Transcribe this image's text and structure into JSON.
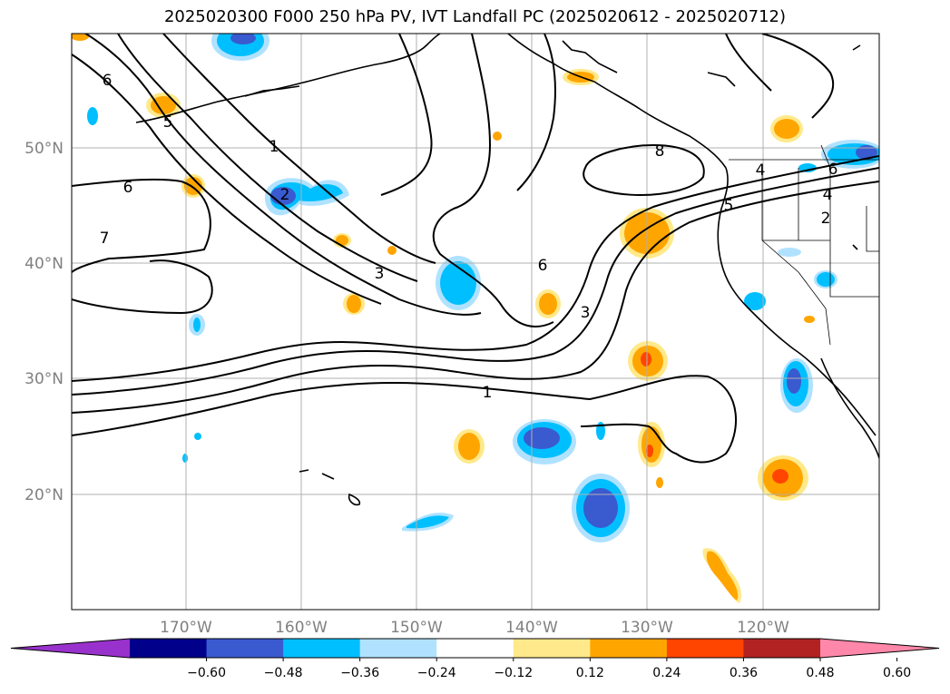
{
  "title": "2025020300 F000 250 hPa PV, IVT Landfall PC (2025020612 - 2025020712)",
  "lon_ticks": [
    "170°W",
    "160°W",
    "150°W",
    "140°W",
    "130°W",
    "120°W"
  ],
  "lat_ticks": [
    "50°N",
    "40°N",
    "30°N",
    "20°N"
  ],
  "contour_labels": [
    "6",
    "5",
    "1",
    "6",
    "7",
    "2",
    "3",
    "6",
    "3",
    "1",
    "8",
    "4",
    "5",
    "4",
    "2",
    "6"
  ],
  "colorbar": {
    "ticks": [
      "−0.60",
      "−0.48",
      "−0.36",
      "−0.24",
      "−0.12",
      "0.12",
      "0.24",
      "0.36",
      "0.48",
      "0.60"
    ],
    "colors": [
      "#9932cc",
      "#00008b",
      "#3a5ad0",
      "#00bfff",
      "#b0e2ff",
      "#ffffff",
      "#ffe98a",
      "#ffa500",
      "#ff4500",
      "#b22222",
      "#ff88aa"
    ]
  },
  "shading_colors": {
    "neg_light": "#b0e2ff",
    "neg_mid": "#00bfff",
    "neg_strong": "#3a5ad0",
    "pos_light": "#ffe98a",
    "pos_mid": "#ffa500",
    "pos_strong": "#ff4500"
  }
}
